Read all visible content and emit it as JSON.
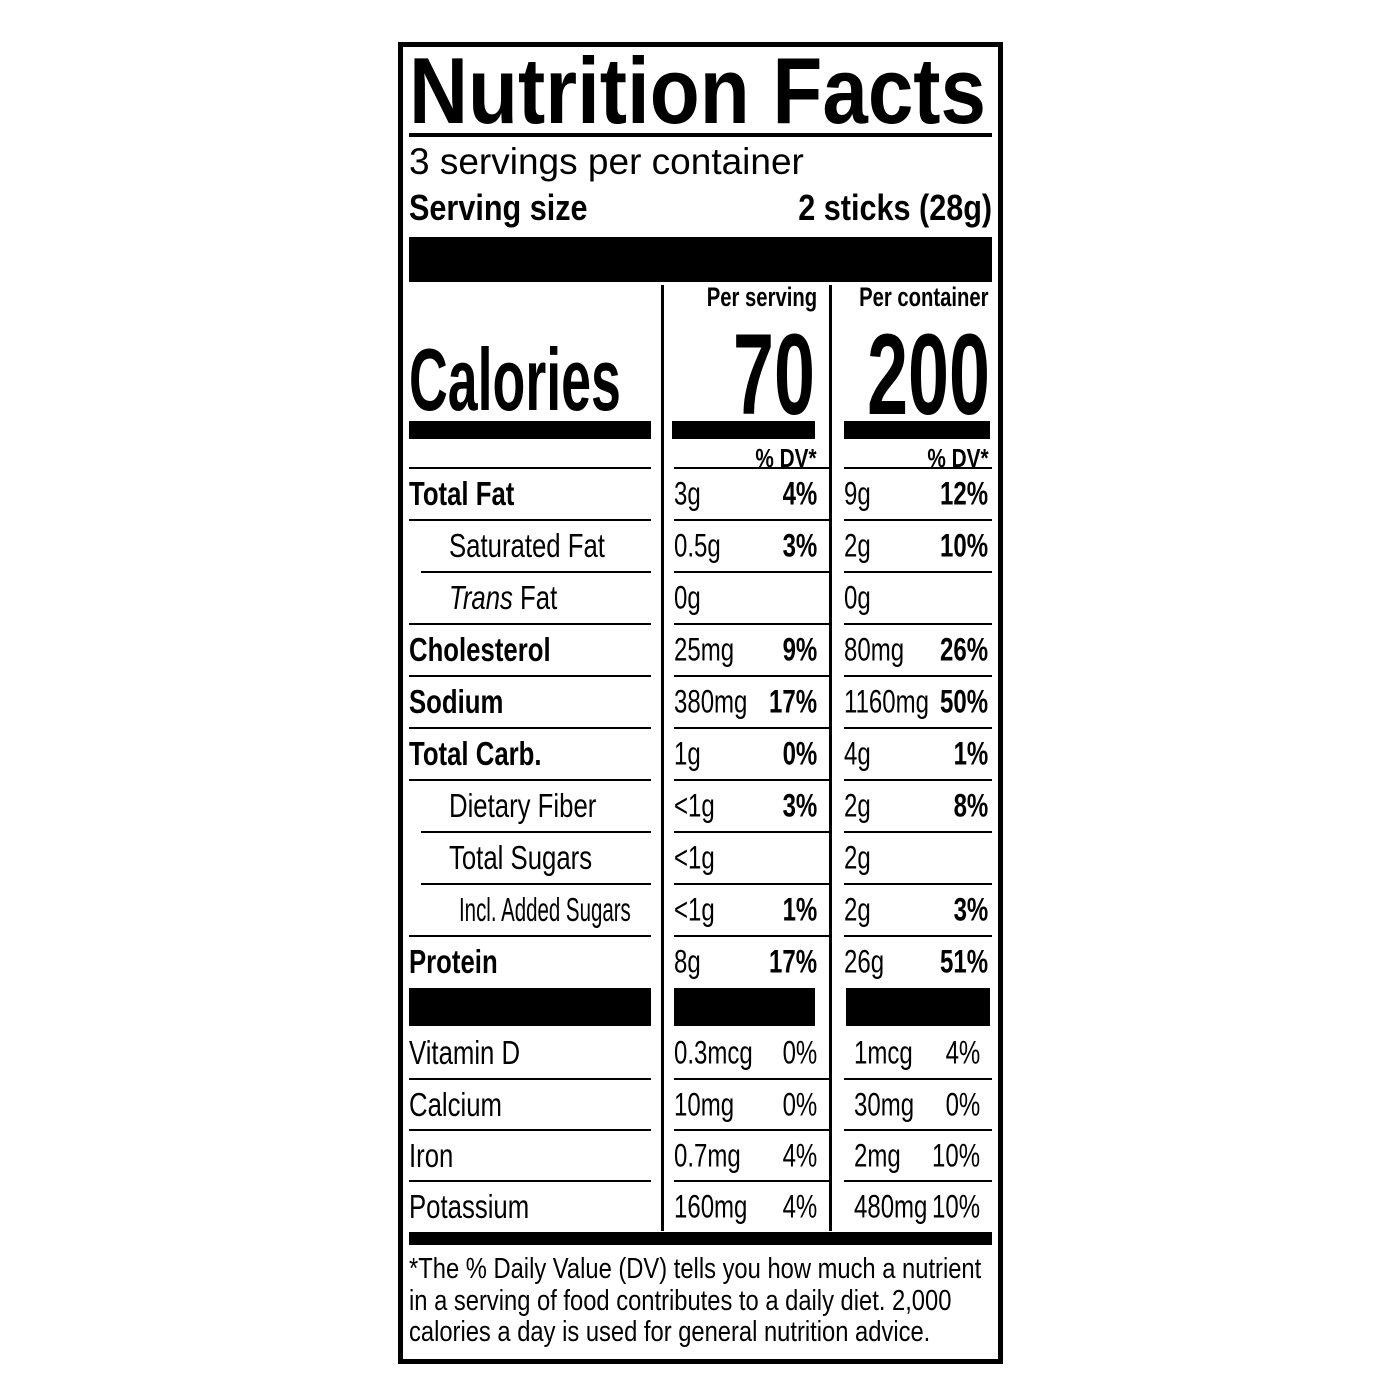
{
  "label": {
    "title": "Nutrition Facts",
    "servings_per_container": "3 servings per container",
    "serving_size_label": "Serving size",
    "serving_size_value": "2 sticks (28g)",
    "calories": {
      "label": "Calories",
      "per_serving_header": "Per serving",
      "per_container_header": "Per container",
      "per_serving_value": "70",
      "per_container_value": "200",
      "dv_header": "% DV*"
    },
    "rows": [
      {
        "name": "Total Fat",
        "amt1": "3g",
        "pct1": "4%",
        "amt2": "9g",
        "pct2": "12%"
      },
      {
        "name": "Saturated Fat",
        "amt1": "0.5g",
        "pct1": "3%",
        "amt2": "2g",
        "pct2": "10%"
      },
      {
        "name_italic": "Trans",
        "name_rest": " Fat",
        "amt1": "0g",
        "pct1": "",
        "amt2": "0g",
        "pct2": ""
      },
      {
        "name": "Cholesterol",
        "amt1": "25mg",
        "pct1": "9%",
        "amt2": "80mg",
        "pct2": "26%"
      },
      {
        "name": "Sodium",
        "amt1": "380mg",
        "pct1": "17%",
        "amt2": "1160mg",
        "pct2": "50%"
      },
      {
        "name": "Total Carb.",
        "amt1": "1g",
        "pct1": "0%",
        "amt2": "4g",
        "pct2": "1%"
      },
      {
        "name": "Dietary Fiber",
        "amt1": "<1g",
        "pct1": "3%",
        "amt2": "2g",
        "pct2": "8%"
      },
      {
        "name": "Total Sugars",
        "amt1": "<1g",
        "pct1": "",
        "amt2": "2g",
        "pct2": ""
      },
      {
        "name": "Incl. Added Sugars",
        "amt1": "<1g",
        "pct1": "1%",
        "amt2": "2g",
        "pct2": "3%"
      },
      {
        "name": "Protein",
        "amt1": "8g",
        "pct1": "17%",
        "amt2": "26g",
        "pct2": "51%"
      }
    ],
    "vitamins": [
      {
        "name": "Vitamin D",
        "amt1": "0.3mcg",
        "pct1": "0%",
        "amt2": "1mcg",
        "pct2": "4%"
      },
      {
        "name": "Calcium",
        "amt1": "10mg",
        "pct1": "0%",
        "amt2": "30mg",
        "pct2": "0%"
      },
      {
        "name": "Iron",
        "amt1": "0.7mg",
        "pct1": "4%",
        "amt2": "2mg",
        "pct2": "10%"
      },
      {
        "name": "Potassium",
        "amt1": "160mg",
        "pct1": "4%",
        "amt2": "480mg",
        "pct2": "10%"
      }
    ],
    "footnote": "*The % Daily Value (DV) tells you how much a nutrient in a serving of food contributes to a daily diet. 2,000 calories a day is used for general nutrition advice."
  },
  "colors": {
    "ink": "#000000",
    "paper": "#ffffff"
  }
}
